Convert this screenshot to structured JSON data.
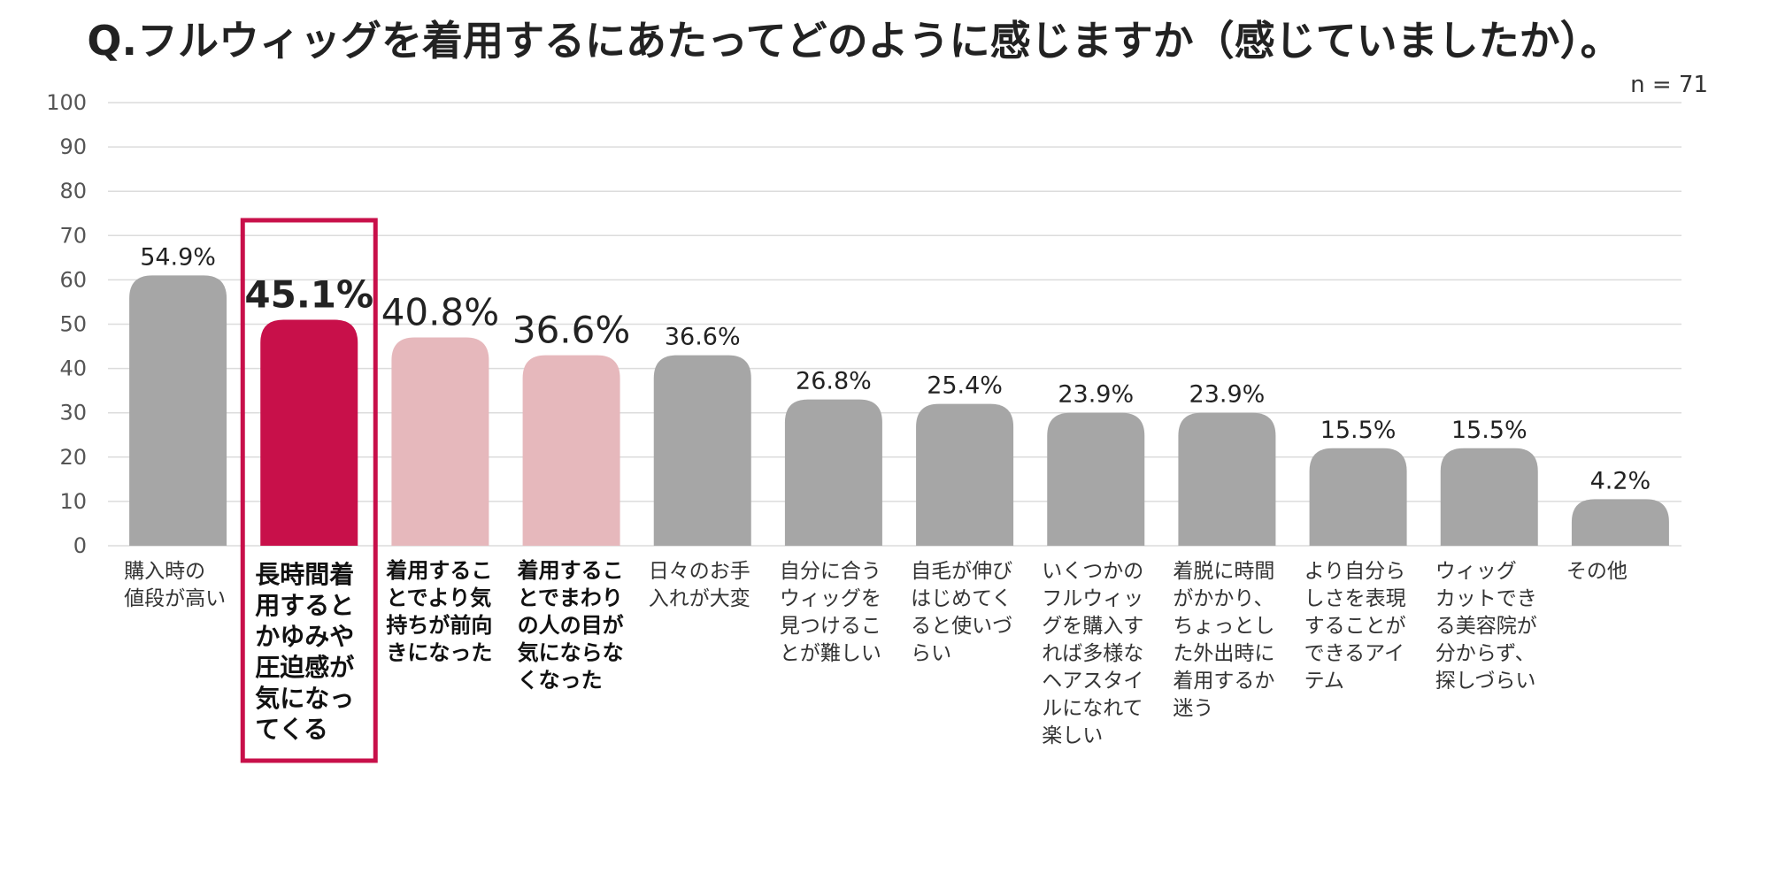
{
  "chart_data": {
    "type": "bar",
    "title": "Q.フルウィッグを着用するにあたってどのように感じますか（感じていましたか）。",
    "sample_size": "n = 71",
    "ylim": [
      0,
      100
    ],
    "yticks": [
      0,
      10,
      20,
      30,
      40,
      50,
      60,
      70,
      80,
      90,
      100
    ],
    "grid": true,
    "categories": [
      [
        "購入時の",
        "値段が高い"
      ],
      [
        "長時間着",
        "用すると",
        "かゆみや",
        "圧迫感が",
        "気になっ",
        "てくる"
      ],
      [
        "着用するこ",
        "とでより気",
        "持ちが前向",
        "きになった"
      ],
      [
        "着用するこ",
        "とでまわり",
        "の人の目が",
        "気にならな",
        "くなった"
      ],
      [
        "日々のお手",
        "入れが大変"
      ],
      [
        "自分に合う",
        "ウィッグを",
        "見つけるこ",
        "とが難しい"
      ],
      [
        "自毛が伸び",
        "はじめてく",
        "ると使いづ",
        "らい"
      ],
      [
        "いくつかの",
        "フルウィッ",
        "グを購入す",
        "れば多様な",
        "ヘアスタイ",
        "ルになれて",
        "楽しい"
      ],
      [
        "着脱に時間",
        "がかかり、",
        "ちょっとし",
        "た外出時に",
        "着用するか",
        "迷う"
      ],
      [
        "より自分ら",
        "しさを表現",
        "することが",
        "できるアイ",
        "テム"
      ],
      [
        "ウィッグ",
        "カットでき",
        "る美容院が",
        "分からず、",
        "探しづらい"
      ],
      [
        "その他"
      ]
    ],
    "values": [
      54.9,
      45.1,
      40.8,
      36.6,
      36.6,
      26.8,
      25.4,
      23.9,
      23.9,
      15.5,
      15.5,
      4.2
    ],
    "value_labels": [
      "54.9%",
      "45.1%",
      "40.8%",
      "36.6%",
      "36.6%",
      "26.8%",
      "25.4%",
      "23.9%",
      "23.9%",
      "15.5%",
      "15.5%",
      "4.2%"
    ],
    "bar_heights_on_axis": [
      61,
      51,
      47,
      43,
      43,
      33,
      32,
      30,
      30,
      22,
      22,
      10.5
    ],
    "bar_colors": [
      "#a6a6a6",
      "#c8104a",
      "#e6b8bc",
      "#e6b8bc",
      "#a6a6a6",
      "#a6a6a6",
      "#a6a6a6",
      "#a6a6a6",
      "#a6a6a6",
      "#a6a6a6",
      "#a6a6a6",
      "#a6a6a6"
    ],
    "highlighted_index": 1,
    "highlight_color": "#c8104a",
    "emphasized_indices": [
      1,
      2,
      3
    ]
  }
}
